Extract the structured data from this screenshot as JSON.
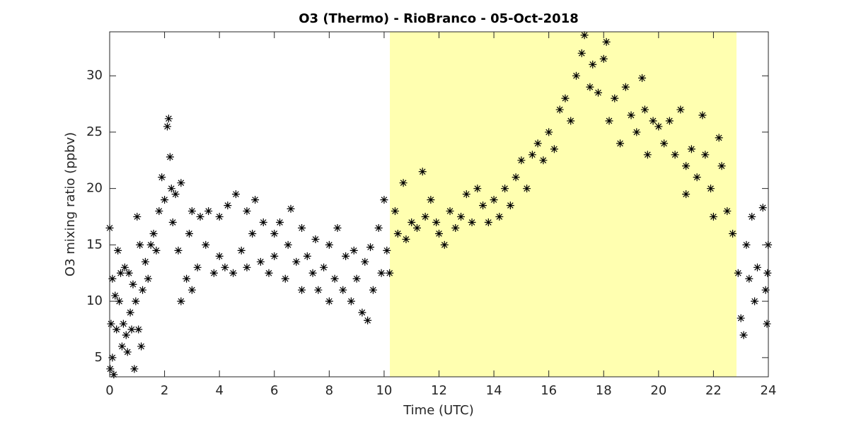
{
  "chart_data": {
    "type": "scatter",
    "title": "O3 (Thermo) - RioBranco - 05-Oct-2018",
    "x_label": "Time (UTC)",
    "y_label": "O3 mixing ratio (ppbv)",
    "xlim": [
      0,
      24
    ],
    "ylim": [
      3.3,
      33.9
    ],
    "xticks": [
      0,
      2,
      4,
      6,
      8,
      10,
      12,
      14,
      16,
      18,
      20,
      22,
      24
    ],
    "yticks": [
      5,
      10,
      15,
      20,
      25,
      30
    ],
    "shaded_region": [
      10.21,
      22.84
    ],
    "shaded_color": "#ffffb0",
    "color": "#000000",
    "marker": "asterisk",
    "x": [
      0,
      0.02,
      0.05,
      0.1,
      0.1,
      0.15,
      0.2,
      0.25,
      0.3,
      0.35,
      0.4,
      0.45,
      0.5,
      0.55,
      0.6,
      0.65,
      0.7,
      0.75,
      0.8,
      0.85,
      0.9,
      0.95,
      1.0,
      1.05,
      1.1,
      1.15,
      1.2,
      1.3,
      1.4,
      1.5,
      1.6,
      1.7,
      1.8,
      1.9,
      2.0,
      2.1,
      2.15,
      2.2,
      2.25,
      2.3,
      2.4,
      2.5,
      2.6,
      2.6,
      2.8,
      2.9,
      3.0,
      3.0,
      3.2,
      3.3,
      3.5,
      3.6,
      3.8,
      4.0,
      4.0,
      4.2,
      4.3,
      4.5,
      4.6,
      4.8,
      5.0,
      5.0,
      5.2,
      5.3,
      5.5,
      5.6,
      5.8,
      6.0,
      6.0,
      6.2,
      6.4,
      6.5,
      6.6,
      6.8,
      7.0,
      7.0,
      7.2,
      7.4,
      7.5,
      7.6,
      7.8,
      8.0,
      8.0,
      8.2,
      8.3,
      8.5,
      8.6,
      8.8,
      8.9,
      9.0,
      9.2,
      9.3,
      9.4,
      9.5,
      9.6,
      9.8,
      9.9,
      10.0,
      10.1,
      10.2,
      10.4,
      10.5,
      10.7,
      10.8,
      11.0,
      11.2,
      11.4,
      11.5,
      11.7,
      11.9,
      12.0,
      12.2,
      12.4,
      12.6,
      12.8,
      13.0,
      13.2,
      13.4,
      13.6,
      13.8,
      14.0,
      14.2,
      14.4,
      14.6,
      14.8,
      15.0,
      15.2,
      15.4,
      15.6,
      15.8,
      16.0,
      16.2,
      16.4,
      16.6,
      16.8,
      17.0,
      17.2,
      17.3,
      17.5,
      17.6,
      17.8,
      18.0,
      18.1,
      18.2,
      18.4,
      18.6,
      18.8,
      19.0,
      19.2,
      19.4,
      19.5,
      19.6,
      19.8,
      20.0,
      20.2,
      20.4,
      20.6,
      20.8,
      21.0,
      21.0,
      21.2,
      21.4,
      21.6,
      21.7,
      21.9,
      22.0,
      22.2,
      22.3,
      22.5,
      22.7,
      22.9,
      23.0,
      23.1,
      23.2,
      23.3,
      23.4,
      23.5,
      23.6,
      23.8,
      23.9,
      23.95,
      23.97,
      23.99
    ],
    "values": [
      16.5,
      4,
      8,
      12,
      5,
      3.5,
      10.5,
      7.5,
      14.5,
      10,
      12.5,
      6,
      8,
      13,
      7,
      5.5,
      12.5,
      9,
      7.5,
      11.5,
      4,
      10,
      17.5,
      7.5,
      15,
      6,
      11,
      13.5,
      12,
      15,
      16,
      14.5,
      18,
      21,
      19,
      25.5,
      26.2,
      22.8,
      20,
      17,
      19.5,
      14.5,
      20.5,
      10,
      12,
      16,
      18,
      11,
      13,
      17.5,
      15,
      18,
      12.5,
      14,
      17.5,
      13,
      18.5,
      12.5,
      19.5,
      14.5,
      13,
      18,
      16,
      19,
      13.5,
      17,
      12.5,
      16,
      14,
      17,
      12,
      15,
      18.2,
      13.5,
      11,
      16.5,
      14,
      12.5,
      15.5,
      11,
      13,
      10,
      15,
      12,
      16.5,
      11,
      14,
      10,
      14.5,
      12,
      9,
      13.5,
      8.3,
      14.8,
      11,
      16.5,
      12.5,
      19,
      14.5,
      12.5,
      18,
      16,
      20.5,
      15.5,
      17,
      16.5,
      21.5,
      17.5,
      19,
      17,
      16,
      15,
      18,
      16.5,
      17.5,
      19.5,
      17,
      20,
      18.5,
      17,
      19,
      17.5,
      20,
      18.5,
      21,
      22.5,
      20,
      23,
      24,
      22.5,
      25,
      23.5,
      27,
      28,
      26,
      30,
      32,
      33.6,
      29,
      31,
      28.5,
      31.5,
      33,
      26,
      28,
      24,
      29,
      26.5,
      25,
      29.8,
      27,
      23,
      26,
      25.5,
      24,
      26,
      23,
      27,
      22,
      19.5,
      23.5,
      21,
      26.5,
      23,
      20,
      17.5,
      24.5,
      22,
      18,
      16,
      12.5,
      8.5,
      7,
      15,
      12,
      17.5,
      10,
      13,
      18.3,
      11,
      8,
      12.5,
      15
    ]
  }
}
